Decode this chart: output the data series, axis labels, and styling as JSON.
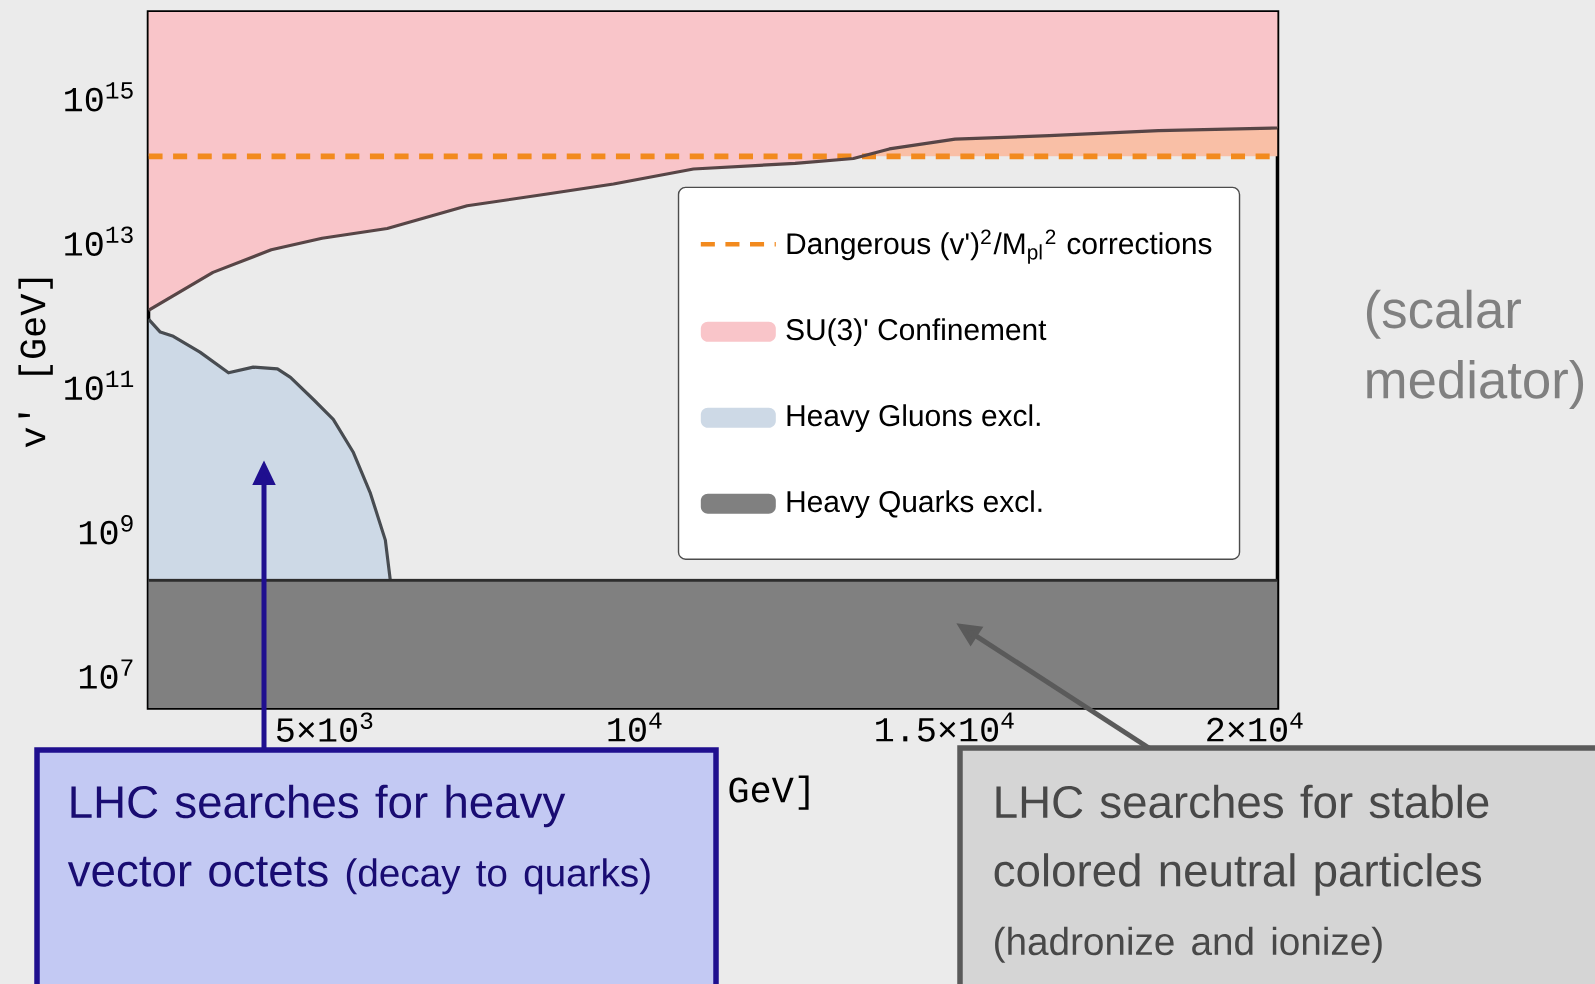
{
  "chart_data": {
    "type": "area",
    "xlabel": "GeV]",
    "ylabel": "v' [GeV]",
    "xlim": [
      2150,
      20360
    ],
    "ylim": [
      3400000.0,
      1.5e+16
    ],
    "log": "y",
    "xticks": [
      {
        "value": 5000,
        "label": "5×10$^{3}$"
      },
      {
        "value": 10000,
        "label": "10$^{4}$"
      },
      {
        "value": 15000,
        "label": "1.5×10$^{4}$"
      },
      {
        "value": 20000,
        "label": "2×10$^{4}$"
      }
    ],
    "yticks": [
      {
        "value": 10000000.0,
        "label": "10$^{7}$"
      },
      {
        "value": 1000000000.0,
        "label": "10$^{9}$"
      },
      {
        "value": 100000000000.0,
        "label": "10$^{11}$"
      },
      {
        "value": 10000000000000.0,
        "label": "10$^{13}$"
      },
      {
        "value": 1000000000000000.0,
        "label": "10$^{15}$"
      }
    ],
    "legend": "right",
    "grid": false,
    "series": [
      {
        "name": "Dangerous (v')$^{2}$/M$_{pl}$$^{2}$ corrections",
        "type": "line",
        "line_style": "dashed",
        "color": "#f28a1e",
        "x": [
          2150,
          20360
        ],
        "values": [
          150000000000000.0,
          150000000000000.0
        ]
      },
      {
        "name": "SU(3)' Confinement",
        "color": "#f9c5c9",
        "x": [
          2150,
          3190,
          4130,
          4950,
          6000,
          7290,
          8580,
          9650,
          10940,
          12580,
          13520,
          14100,
          15160,
          16680,
          18440,
          20360
        ],
        "values": [
          1100000000000.0,
          3700000000000.0,
          7600000000000.0,
          11000000000000.0,
          15000000000000.0,
          31000000000000.0,
          45000000000000.0,
          62000000000000.0,
          100000000000000.0,
          120000000000000.0,
          140000000000000.0,
          190000000000000.0,
          260000000000000.0,
          290000000000000.0,
          340000000000000.0,
          370000000000000.0
        ]
      },
      {
        "name": "Heavy Gluons excl.",
        "color": "#cdd9e6",
        "x": [
          2150,
          2340,
          2550,
          2980,
          3440,
          3840,
          4230,
          4440,
          4810,
          5130,
          5450,
          5730,
          5970,
          6050
        ],
        "values": [
          830000000000.0,
          550000000000.0,
          480000000000.0,
          290000000000.0,
          150000000000.0,
          180000000000.0,
          170000000000.0,
          130000000000.0,
          64000000000.0,
          34000000000.0,
          12000000000.0,
          3200000000.0,
          720000000.0,
          200000000.0
        ]
      },
      {
        "name": "Heavy Quarks excl.",
        "color": "#808080",
        "x": [
          2150,
          20360
        ],
        "values": [
          200000000.0,
          200000000.0
        ]
      }
    ],
    "bands": [
      {
        "axis": "y",
        "from": 150000000000000.0,
        "to": 1.5e+16,
        "color": "#f9bfa6"
      }
    ],
    "annotations": [
      "LHC searches for heavy vector octets",
      "(decay to quarks)",
      "LHC searches for stable colored neutral particles",
      "(hadronize and ionize)",
      "(scalar mediator)"
    ]
  }
}
